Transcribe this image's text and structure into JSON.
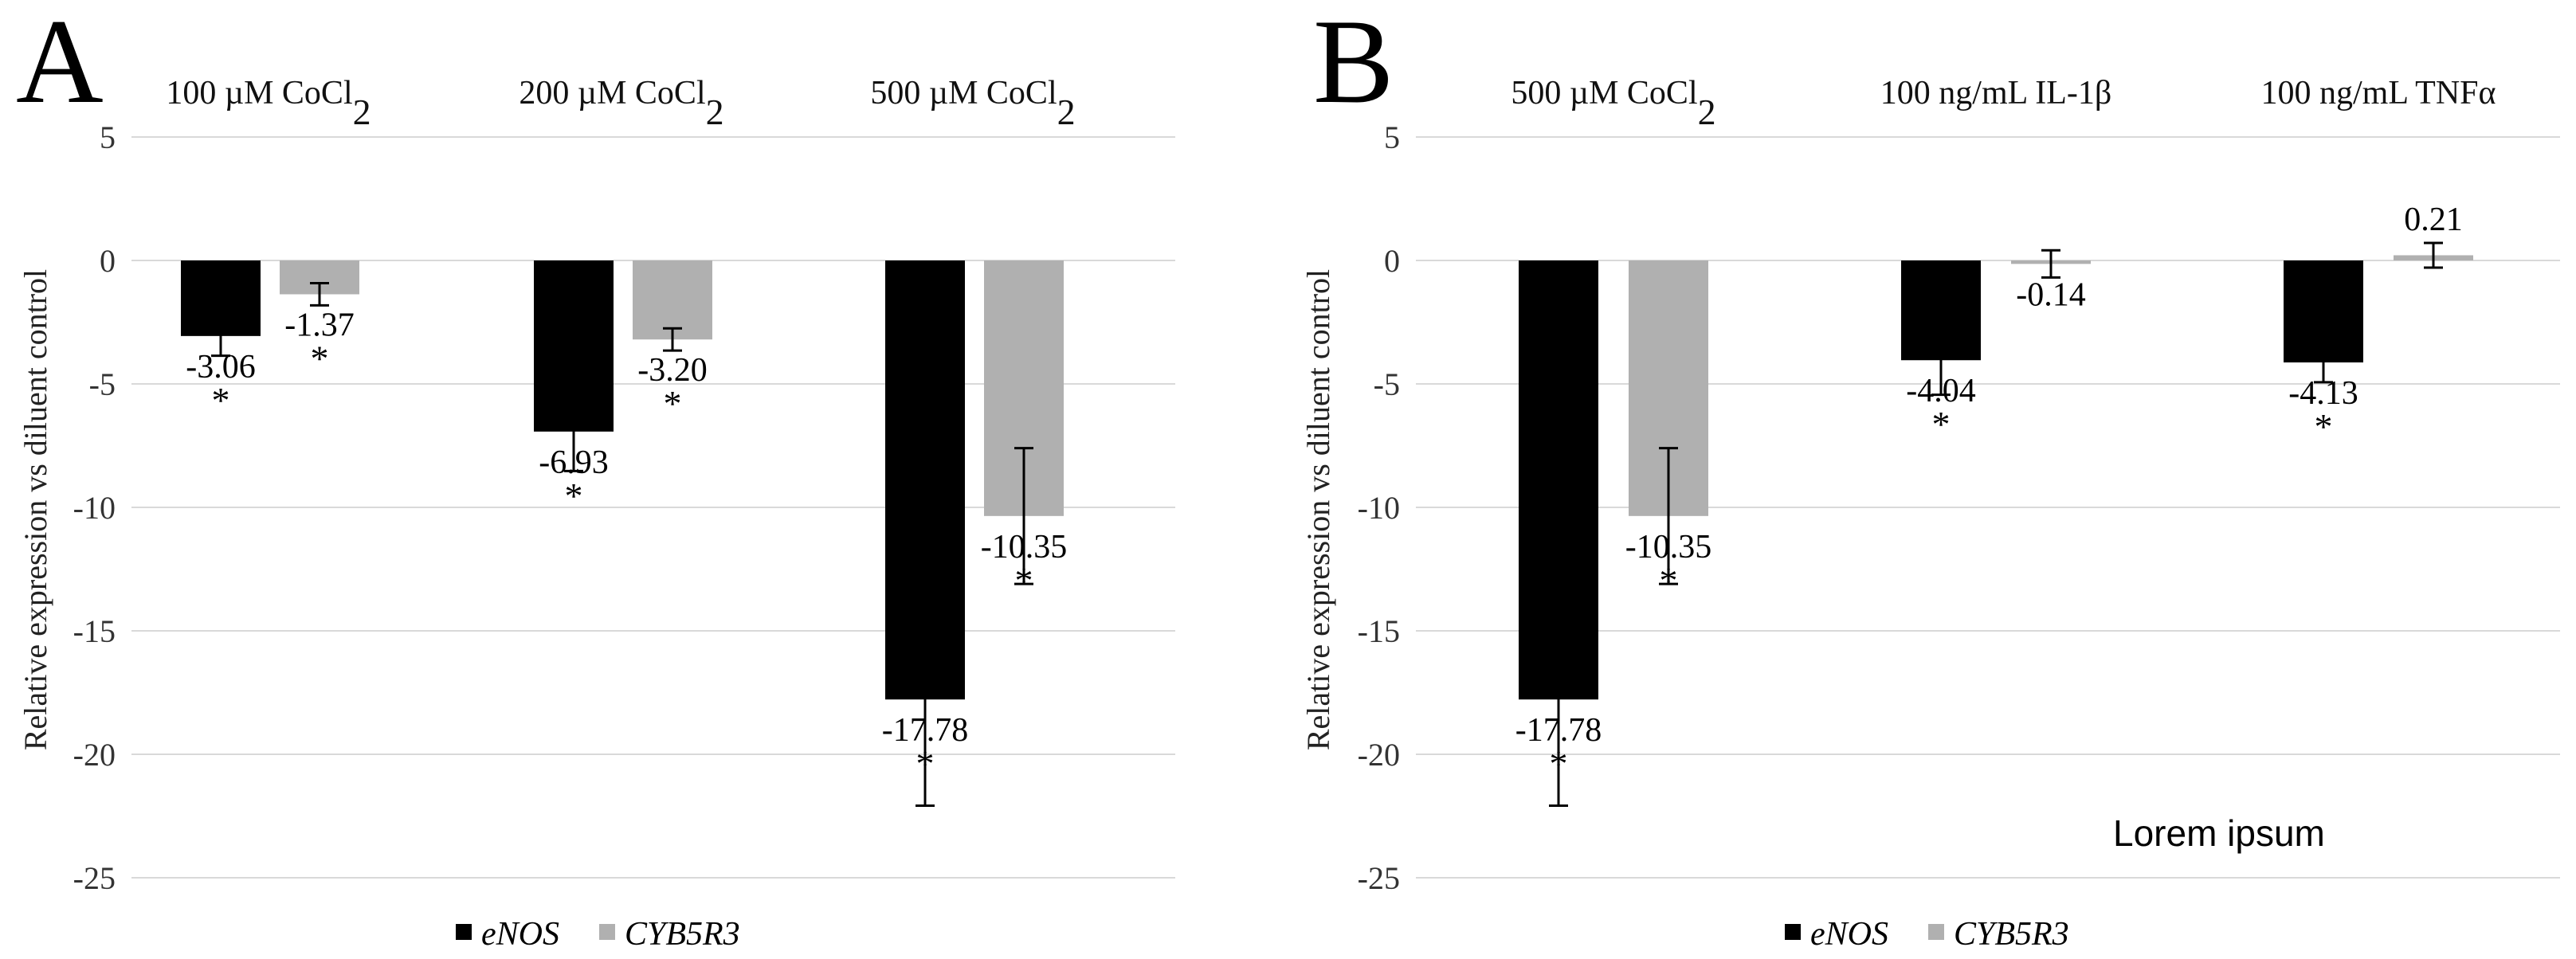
{
  "panel_letters": [
    "A",
    "B"
  ],
  "y_axis_label": "Relative expression vs diluent control",
  "legend": [
    {
      "label": "eNOS",
      "color": "#000000"
    },
    {
      "label": "CYB5R3",
      "color": "#b0b0b0"
    }
  ],
  "annotation": "Lorem ipsum",
  "significance_marker": "*",
  "chart_data": [
    {
      "panel": "A",
      "type": "bar",
      "ylim": [
        -25,
        5
      ],
      "yticks": [
        5,
        0,
        -5,
        -10,
        -15,
        -20,
        -25
      ],
      "categories": [
        {
          "label": "100 µM CoCl",
          "sub": "2"
        },
        {
          "label": "200 µM CoCl",
          "sub": "2"
        },
        {
          "label": "500 µM CoCl",
          "sub": "2"
        }
      ],
      "series": [
        {
          "name": "eNOS",
          "color": "#000000",
          "values": [
            -3.06,
            -6.93,
            -17.78
          ],
          "errors": [
            0.8,
            1.6,
            4.3
          ],
          "labels": [
            "-3.06",
            "-6.93",
            "-17.78"
          ],
          "significant": [
            true,
            true,
            true
          ]
        },
        {
          "name": "CYB5R3",
          "color": "#b0b0b0",
          "values": [
            -1.37,
            -3.2,
            -10.35
          ],
          "errors": [
            0.45,
            0.45,
            2.75
          ],
          "labels": [
            "-1.37",
            "-3.20",
            "-10.35"
          ],
          "significant": [
            true,
            true,
            true
          ]
        }
      ]
    },
    {
      "panel": "B",
      "type": "bar",
      "ylim": [
        -25,
        5
      ],
      "yticks": [
        5,
        0,
        -5,
        -10,
        -15,
        -20,
        -25
      ],
      "categories": [
        {
          "label": "500 µM CoCl",
          "sub": "2"
        },
        {
          "label": "100 ng/mL IL-1β",
          "sub": ""
        },
        {
          "label": "100 ng/mL TNFα",
          "sub": ""
        }
      ],
      "series": [
        {
          "name": "eNOS",
          "color": "#000000",
          "values": [
            -17.78,
            -4.04,
            -4.13
          ],
          "errors": [
            4.3,
            1.4,
            0.8
          ],
          "labels": [
            "-17.78",
            "-4.04",
            "-4.13"
          ],
          "significant": [
            true,
            true,
            true
          ]
        },
        {
          "name": "CYB5R3",
          "color": "#b0b0b0",
          "values": [
            -10.35,
            -0.14,
            0.21
          ],
          "errors": [
            2.75,
            0.55,
            0.5
          ],
          "labels": [
            "-10.35",
            "-0.14",
            "0.21"
          ],
          "significant": [
            true,
            false,
            false
          ]
        }
      ]
    }
  ]
}
